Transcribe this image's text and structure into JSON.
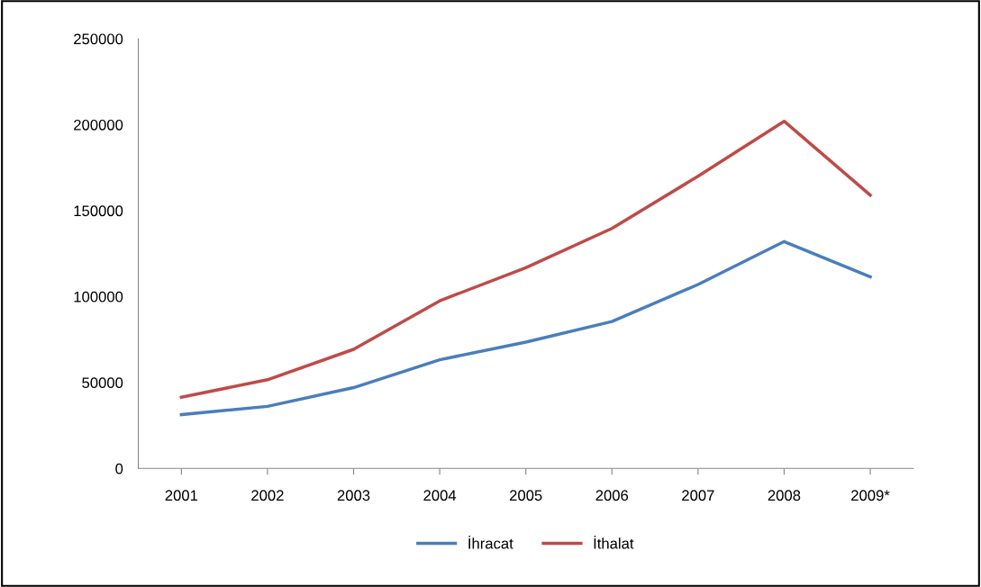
{
  "chart_data": {
    "type": "line",
    "categories": [
      "2001",
      "2002",
      "2003",
      "2004",
      "2005",
      "2006",
      "2007",
      "2008",
      "2009*"
    ],
    "series": [
      {
        "name": "İhracat",
        "color": "#4a7ebb",
        "values": [
          31300,
          36100,
          47000,
          63200,
          73500,
          85500,
          107000,
          132000,
          111500
        ]
      },
      {
        "name": "İthalat",
        "color": "#be4b48",
        "values": [
          41400,
          51600,
          69300,
          97500,
          116800,
          139600,
          170000,
          202000,
          159000
        ]
      }
    ],
    "ylim": [
      0,
      250000
    ],
    "yticks": [
      0,
      50000,
      100000,
      150000,
      200000,
      250000
    ],
    "grid": false,
    "legend": "bottom",
    "marker": "none",
    "line_style": "solid"
  }
}
